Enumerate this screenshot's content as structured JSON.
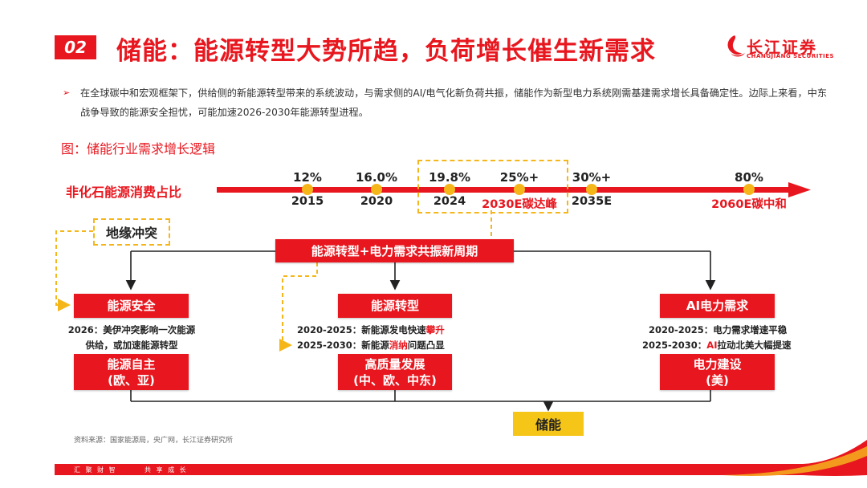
{
  "header": {
    "badge": "02",
    "title": "储能：能源转型大势所趋，负荷增长催生新需求"
  },
  "logo": {
    "cn": "长江证券",
    "en": "CHANGJIANG SECURITIES"
  },
  "bullet": {
    "text": "在全球碳中和宏观框架下，供给侧的新能源转型带来的系统波动，与需求侧的AI/电气化新负荷共振，储能作为新型电力系统刚需基建需求增长具备确定性。边际上来看，中东战争导致的能源安全担忧，可能加速2026-2030年能源转型进程。"
  },
  "figure_title": "图：储能行业需求增长逻辑",
  "timeline": {
    "label": "非化石能源消费占比",
    "points": [
      {
        "pct": "12%",
        "year": "2015"
      },
      {
        "pct": "16.0%",
        "year": "2020"
      },
      {
        "pct": "19.8%",
        "year": "2024"
      },
      {
        "pct": "25%+",
        "year": "2030E碳达峰"
      },
      {
        "pct": "30%+",
        "year": "2035E"
      },
      {
        "pct": "80%",
        "year": "2060E碳中和"
      }
    ]
  },
  "diagram": {
    "conflict": "地缘冲突",
    "center": "能源转型+电力需求共振新周期",
    "left": {
      "top": "能源安全",
      "desc": "2026：美伊冲突影响一次能源供给，或加速能源转型",
      "bottom_line1": "能源自主",
      "bottom_line2": "(欧、亚)"
    },
    "middle": {
      "top": "能源转型",
      "desc1_a": "2020-2025：新能源发电快速",
      "desc1_b": "攀升",
      "desc2_a": "2025-2030：新能源",
      "desc2_b": "消纳",
      "desc2_c": "问题凸显",
      "bottom_line1": "高质量发展",
      "bottom_line2": "(中、欧、中东)"
    },
    "right": {
      "top": "AI电力需求",
      "desc1": "2020-2025：电力需求增速平稳",
      "desc2_a": "2025-2030：",
      "desc2_b": "AI",
      "desc2_c": "拉动北美大幅提速",
      "bottom_line1": "电力建设",
      "bottom_line2": "(美)"
    },
    "final": "储能"
  },
  "source": "资料来源：国家能源局，央广网，长江证券研究所",
  "footer": {
    "left": "汇 聚 财 智",
    "right": "共 享 成 长"
  },
  "colors": {
    "accent": "#e8171f",
    "highlight": "#f5b61a"
  }
}
